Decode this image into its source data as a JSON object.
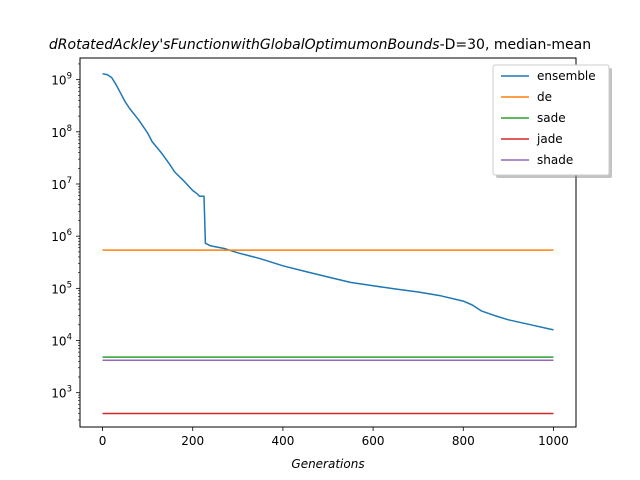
{
  "chart_data": {
    "type": "line",
    "title": "dRotatedAckley'sFunctionwithGlobalOptimumonBounds-D=30, median-mean",
    "title_italic_part": "dRotatedAckley'sFunctionwithGlobalOptimumonBounds",
    "title_plain_part": "-D=30, median-mean",
    "xlabel": "Generations",
    "ylabel": "",
    "xlim": [
      -50,
      1050
    ],
    "ylim": [
      220,
      2600000000
    ],
    "yscale": "log",
    "xticks": [
      0,
      200,
      400,
      600,
      800,
      1000
    ],
    "yticks": [
      1000,
      10000,
      100000,
      1000000,
      10000000,
      100000000,
      1000000000
    ],
    "ytick_labels": [
      {
        "base": "10",
        "exp": "3"
      },
      {
        "base": "10",
        "exp": "4"
      },
      {
        "base": "10",
        "exp": "5"
      },
      {
        "base": "10",
        "exp": "6"
      },
      {
        "base": "10",
        "exp": "7"
      },
      {
        "base": "10",
        "exp": "8"
      },
      {
        "base": "10",
        "exp": "9"
      }
    ],
    "grid": false,
    "legend_position": "top-right",
    "series": [
      {
        "name": "ensemble",
        "color": "#1f77b4",
        "points": [
          [
            0,
            1300000000
          ],
          [
            10,
            1250000000
          ],
          [
            20,
            1100000000
          ],
          [
            30,
            800000000
          ],
          [
            40,
            550000000
          ],
          [
            50,
            380000000
          ],
          [
            60,
            280000000
          ],
          [
            80,
            170000000
          ],
          [
            100,
            95000000
          ],
          [
            110,
            65000000
          ],
          [
            130,
            40000000
          ],
          [
            150,
            23000000
          ],
          [
            160,
            17000000
          ],
          [
            180,
            11500000
          ],
          [
            200,
            7500000
          ],
          [
            210,
            6500000
          ],
          [
            215,
            5800000
          ],
          [
            225,
            5800000
          ],
          [
            228,
            730000
          ],
          [
            240,
            650000
          ],
          [
            270,
            580000
          ],
          [
            300,
            480000
          ],
          [
            350,
            370000
          ],
          [
            400,
            270000
          ],
          [
            450,
            210000
          ],
          [
            500,
            165000
          ],
          [
            550,
            130000
          ],
          [
            600,
            112000
          ],
          [
            650,
            97000
          ],
          [
            700,
            85000
          ],
          [
            750,
            72000
          ],
          [
            800,
            57000
          ],
          [
            820,
            48000
          ],
          [
            840,
            37000
          ],
          [
            870,
            30000
          ],
          [
            900,
            25000
          ],
          [
            950,
            20000
          ],
          [
            1000,
            16000
          ]
        ]
      },
      {
        "name": "de",
        "color": "#ff7f0e",
        "points": [
          [
            0,
            540000
          ],
          [
            1000,
            540000
          ]
        ]
      },
      {
        "name": "sade",
        "color": "#2ca02c",
        "points": [
          [
            0,
            4800
          ],
          [
            1000,
            4800
          ]
        ]
      },
      {
        "name": "jade",
        "color": "#d62728",
        "points": [
          [
            0,
            400
          ],
          [
            1000,
            400
          ]
        ]
      },
      {
        "name": "shade",
        "color": "#9467bd",
        "points": [
          [
            0,
            4200
          ],
          [
            1000,
            4200
          ]
        ]
      }
    ]
  }
}
